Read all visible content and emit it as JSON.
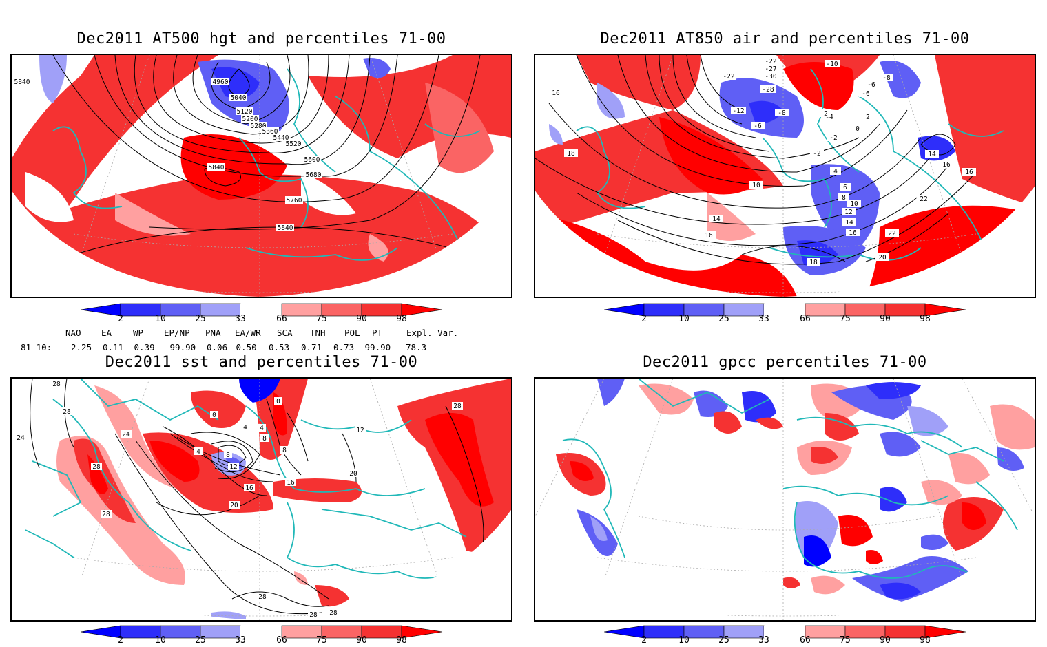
{
  "panels": {
    "hgt": {
      "title": "Dec2011 AT500 hgt and percentiles 71-00",
      "contour_labels": [
        "5840",
        "4960",
        "5040",
        "5120",
        "5200",
        "5280",
        "5360",
        "5440",
        "5520",
        "5600",
        "5680",
        "5760",
        "5840",
        "5840"
      ]
    },
    "air": {
      "title": "Dec2011 AT850 air and percentiles 71-00",
      "contour_labels": [
        "-22",
        "-27",
        "-30",
        "-22",
        "-28",
        "-12",
        "-8",
        "-6",
        "-10",
        "-8",
        "-6",
        "-6",
        "-4",
        "-2",
        "-2",
        "0",
        "2",
        "2",
        "4",
        "6",
        "8",
        "10",
        "12",
        "14",
        "16",
        "16",
        "18",
        "18",
        "16",
        "14",
        "16",
        "10",
        "14",
        "16",
        "22",
        "22",
        "20"
      ]
    },
    "sst": {
      "title": "Dec2011 sst and percentiles 71-00",
      "contour_labels": [
        "28",
        "28",
        "24",
        "24",
        "28",
        "28",
        "4",
        "8",
        "12",
        "16",
        "20",
        "16",
        "0",
        "0",
        "4",
        "4",
        "8",
        "8",
        "12",
        "20",
        "28",
        "28",
        "28",
        "28"
      ]
    },
    "gpcc": {
      "title": "Dec2011 gpcc percentiles 71-00"
    }
  },
  "colorbar": {
    "tick_labels": [
      "2",
      "10",
      "25",
      "33",
      "66",
      "75",
      "90",
      "98"
    ],
    "colors": {
      "blue_extreme": "#0000ff",
      "blue_2": "#2e2efa",
      "blue_10": "#5f5ff5",
      "blue_25": "#a0a0f8",
      "white": "#ffffff",
      "red_66": "#ffa0a0",
      "red_75": "#fa6464",
      "red_90": "#f53232",
      "red_extreme": "#ff0000"
    }
  },
  "indices": {
    "headers": [
      "NAO",
      "EA",
      "WP",
      "EP/NP",
      "PNA",
      "EA/WR",
      "SCA",
      "TNH",
      "POL",
      "PT",
      "Expl. Var."
    ],
    "row_label": "81-10:",
    "values": [
      "2.25",
      "0.11",
      "-0.39",
      "-99.90",
      "0.06",
      "-0.50",
      "0.53",
      "0.71",
      "0.73",
      "-99.90",
      "78.3"
    ]
  },
  "map_colors": {
    "coast": "#20b8b8",
    "contour": "#000000",
    "gridline": "#aaaaaa"
  }
}
